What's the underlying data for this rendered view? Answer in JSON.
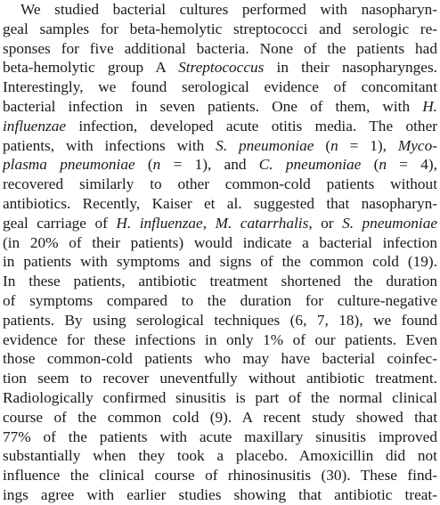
{
  "paragraph": {
    "lines": [
      [
        {
          "t": "We studied bacterial cultures performed with nasopharyn-"
        }
      ],
      [
        {
          "t": "geal samples for beta-hemolytic streptococci and serologic re-"
        }
      ],
      [
        {
          "t": "sponses for five additional bacteria. None of the patients had"
        }
      ],
      [
        {
          "t": "beta-hemolytic group A "
        },
        {
          "t": "Streptococcus",
          "i": true
        },
        {
          "t": " in their nasopharynges."
        }
      ],
      [
        {
          "t": "Interestingly, we found serological evidence of concomitant"
        }
      ],
      [
        {
          "t": "bacterial infection in seven patients. One of them, with "
        },
        {
          "t": "H.",
          "i": true
        }
      ],
      [
        {
          "t": "influenzae",
          "i": true
        },
        {
          "t": " infection, developed acute otitis media. The other"
        }
      ],
      [
        {
          "t": "patients, with infections with "
        },
        {
          "t": "S. pneumoniae",
          "i": true
        },
        {
          "t": " ("
        },
        {
          "t": "n",
          "i": true
        },
        {
          "t": " = 1), "
        },
        {
          "t": "Myco-",
          "i": true
        }
      ],
      [
        {
          "t": "plasma pneumoniae",
          "i": true
        },
        {
          "t": " ("
        },
        {
          "t": "n",
          "i": true
        },
        {
          "t": " = 1), and "
        },
        {
          "t": "C. pneumoniae",
          "i": true
        },
        {
          "t": " ("
        },
        {
          "t": "n",
          "i": true
        },
        {
          "t": " = 4),"
        }
      ],
      [
        {
          "t": "recovered similarly to other common-cold patients without"
        }
      ],
      [
        {
          "t": "antibiotics. Recently, Kaiser et al. suggested that nasopharyn-"
        }
      ],
      [
        {
          "t": "geal carriage of "
        },
        {
          "t": "H. influenzae",
          "i": true
        },
        {
          "t": ", "
        },
        {
          "t": "M. catarrhalis",
          "i": true
        },
        {
          "t": ", or "
        },
        {
          "t": "S. pneumoniae",
          "i": true
        }
      ],
      [
        {
          "t": "(in 20% of their patients) would indicate a bacterial infection"
        }
      ],
      [
        {
          "t": "in patients with symptoms and signs of the common cold (19)."
        }
      ],
      [
        {
          "t": "In these patients, antibiotic treatment shortened the duration"
        }
      ],
      [
        {
          "t": "of symptoms compared to the duration for culture-negative"
        }
      ],
      [
        {
          "t": "patients. By using serological techniques (6, 7, 18), we found"
        }
      ],
      [
        {
          "t": "evidence for these infections in only 1% of our patients. Even"
        }
      ],
      [
        {
          "t": "those common-cold patients who may have bacterial coinfec-"
        }
      ],
      [
        {
          "t": "tion seem to recover uneventfully without antibiotic treatment."
        }
      ],
      [
        {
          "t": "Radiologically confirmed sinusitis is part of the normal clinical"
        }
      ],
      [
        {
          "t": "course of the common cold (9). A recent study showed that"
        }
      ],
      [
        {
          "t": "77% of the patients with acute maxillary sinusitis improved"
        }
      ],
      [
        {
          "t": "substantially when they took a placebo. Amoxicillin did not"
        }
      ],
      [
        {
          "t": "influence the clinical course of rhinosinusitis (30). These find-"
        }
      ],
      [
        {
          "t": "ings agree with earlier studies showing that antibiotic treat-"
        }
      ]
    ]
  }
}
